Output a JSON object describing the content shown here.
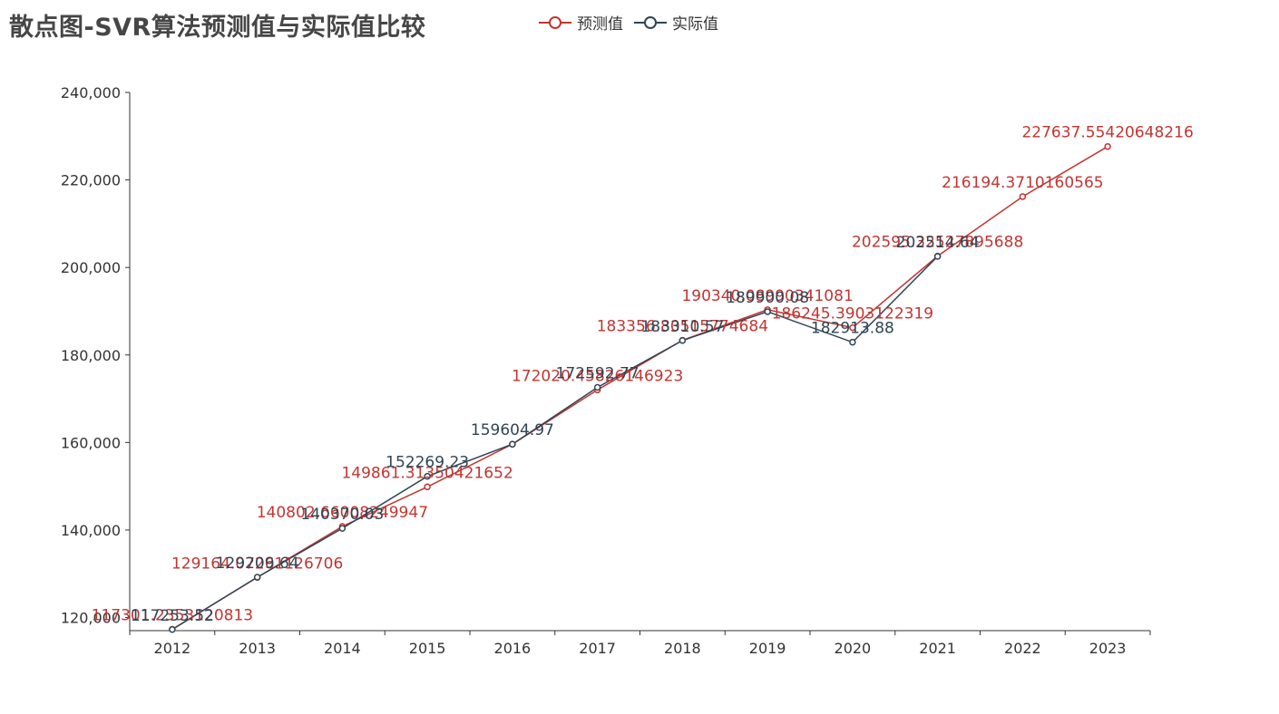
{
  "title": "散点图-SVR算法预测值与实际值比较",
  "colors": {
    "predicted": "#c23531",
    "actual": "#2f4554",
    "axis": "#333333"
  },
  "chart_data": {
    "type": "line",
    "title": "散点图-SVR算法预测值与实际值比较",
    "xlabel": "",
    "ylabel": "",
    "categories": [
      "2012",
      "2013",
      "2014",
      "2015",
      "2016",
      "2017",
      "2018",
      "2019",
      "2020",
      "2021",
      "2022",
      "2023"
    ],
    "ylim": [
      117000,
      240000
    ],
    "yticks": [
      120000,
      140000,
      160000,
      180000,
      200000,
      220000,
      240000
    ],
    "ytick_labels": [
      "120,000",
      "140,000",
      "160,000",
      "180,000",
      "200,000",
      "220,000",
      "240,000"
    ],
    "legend_position": "top-center",
    "grid": false,
    "series": [
      {
        "name": "预测值",
        "color": "#c23531",
        "values": [
          117301.2353120813,
          129164.07261126707,
          140802.66008249947,
          149861.31350421652,
          159604.97,
          172020.45826146923,
          183356.80515774683,
          190340.08990341082,
          186245.3903122319,
          202595.32527895688,
          216194.3710160565,
          227637.55420648216
        ],
        "labels": [
          "117301.2353120813",
          "129164.07261126706",
          "140802.66008249947",
          "149861.31350421652",
          "",
          "172020.45826146923",
          "183356.80515774684",
          "190340.08990341081",
          "186245.3903122319",
          "202595.32527895688",
          "216194.3710160565",
          "227637.55420648216"
        ]
      },
      {
        "name": "实际值",
        "color": "#2f4554",
        "values": [
          117253.52,
          129209.64,
          140370.03,
          152269.23,
          159604.97,
          172592.77,
          183310.57,
          189900.08,
          182913.88,
          202514.64,
          null,
          null
        ],
        "labels": [
          "117253.52",
          "129209.64",
          "140370.03",
          "152269.23",
          "159604.97",
          "172592.77",
          "183310.57",
          "189900.08",
          "182913.88",
          "202514.64",
          "",
          ""
        ]
      }
    ]
  }
}
